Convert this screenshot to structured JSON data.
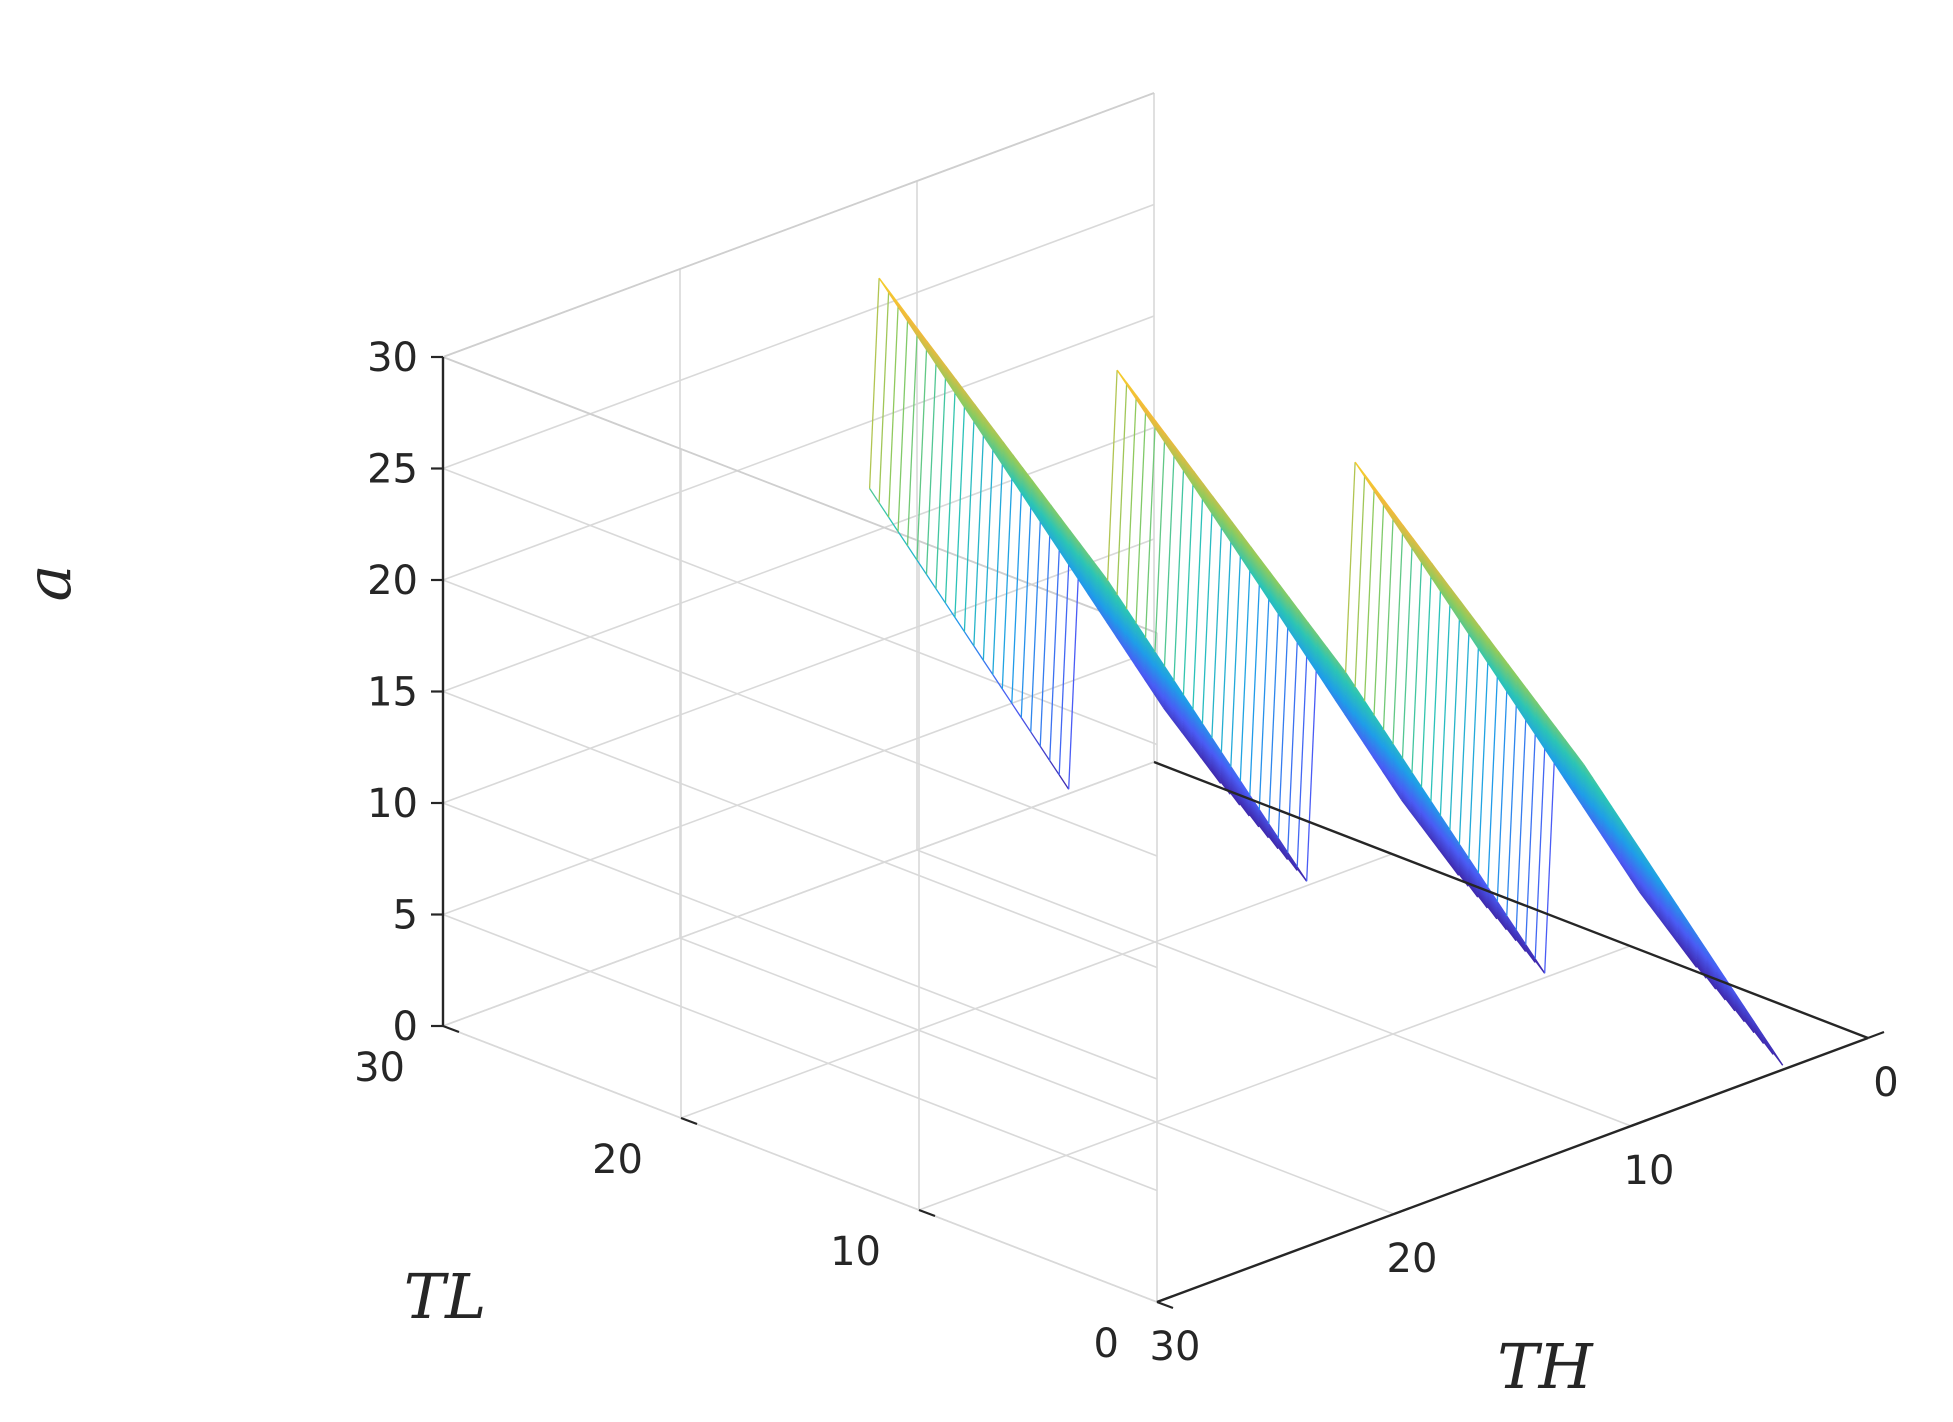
{
  "chart_data": {
    "type": "surface-3d",
    "title": "",
    "xlabel": "TH",
    "ylabel": "TL",
    "zlabel": "a",
    "xlim": [
      0,
      30
    ],
    "ylim": [
      0,
      30
    ],
    "zlim": [
      0,
      30
    ],
    "x_ticks": [
      "0",
      "10",
      "20",
      "30"
    ],
    "y_ticks": [
      "0",
      "10",
      "20",
      "30"
    ],
    "z_ticks": [
      "0",
      "5",
      "10",
      "15",
      "20",
      "25",
      "30"
    ],
    "grid": true,
    "box": true,
    "colormap": "parula",
    "colormap_stops": [
      "#3e26a8",
      "#4a5cf5",
      "#1f9ee8",
      "#2cc5b5",
      "#8dcb5f",
      "#f2b93b",
      "#f9fb0e"
    ],
    "view": {
      "azimuth_deg": 135,
      "elevation_deg": 25
    },
    "surface": {
      "description_formula": "a = 2*TH + (TL mod 10) - 7 within staircase wedge",
      "TH_range": [
        0,
        12
      ],
      "TL_range": [
        0,
        30
      ],
      "mesh_step": 0.4,
      "sawtooth_period_TL": 10,
      "slope_TH": 2,
      "offset": -7,
      "z_floor": 0,
      "z_ceiling": 30
    }
  }
}
